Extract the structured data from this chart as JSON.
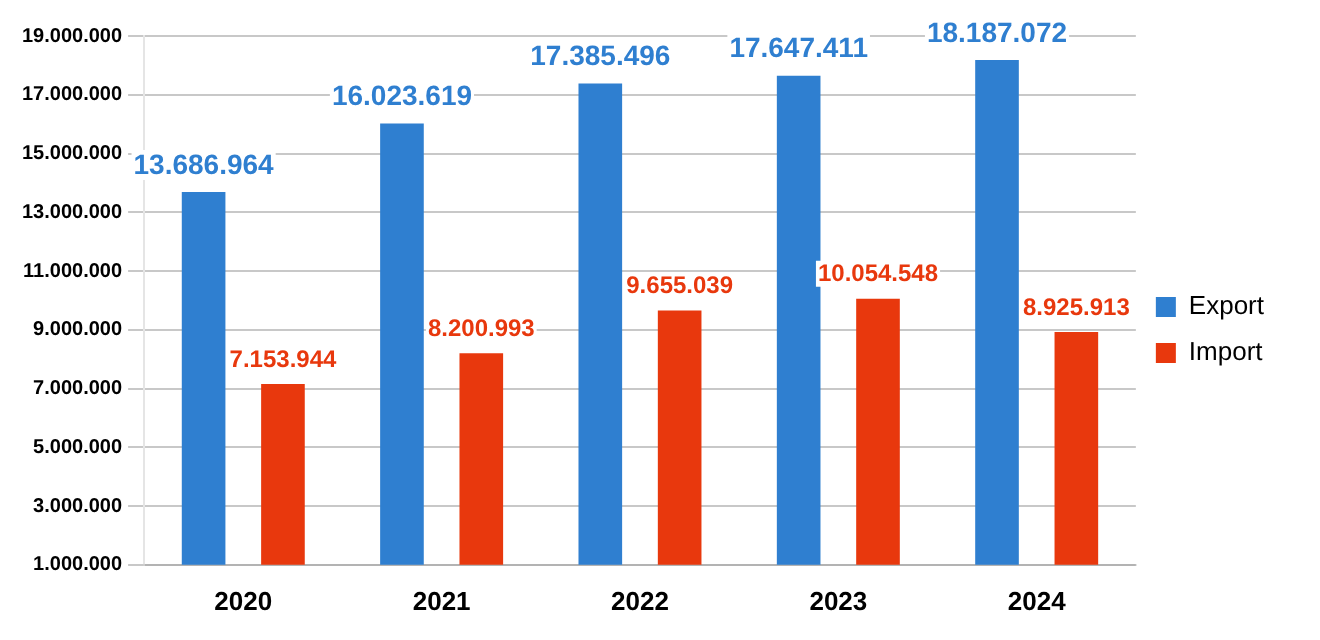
{
  "chart_data": {
    "type": "bar",
    "categories": [
      "2020",
      "2021",
      "2022",
      "2023",
      "2024"
    ],
    "series": [
      {
        "name": "Export",
        "color": "#2f7fd0",
        "values": [
          13686964,
          16023619,
          17385496,
          17647411,
          18187072
        ],
        "value_labels": [
          "13.686.964",
          "16.023.619",
          "17.385.496",
          "17.647.411",
          "18.187.072"
        ]
      },
      {
        "name": "Import",
        "color": "#e8380d",
        "values": [
          7153944,
          8200993,
          9655039,
          10054548,
          8925913
        ],
        "value_labels": [
          "7.153.944",
          "8.200.993",
          "9.655.039",
          "10.054.548",
          "8.925.913"
        ]
      }
    ],
    "ylim": [
      1000000,
      19000000
    ],
    "yticks": [
      {
        "value": 1000000,
        "label": "1.000.000"
      },
      {
        "value": 3000000,
        "label": "3.000.000"
      },
      {
        "value": 5000000,
        "label": "5.000.000"
      },
      {
        "value": 7000000,
        "label": "7.000.000"
      },
      {
        "value": 9000000,
        "label": "9.000.000"
      },
      {
        "value": 11000000,
        "label": "11.000.000"
      },
      {
        "value": 13000000,
        "label": "13.000.000"
      },
      {
        "value": 15000000,
        "label": "15.000.000"
      },
      {
        "value": 17000000,
        "label": "17.000.000"
      },
      {
        "value": 19000000,
        "label": "19.000.000"
      }
    ],
    "grid": "y",
    "legend": "right"
  }
}
